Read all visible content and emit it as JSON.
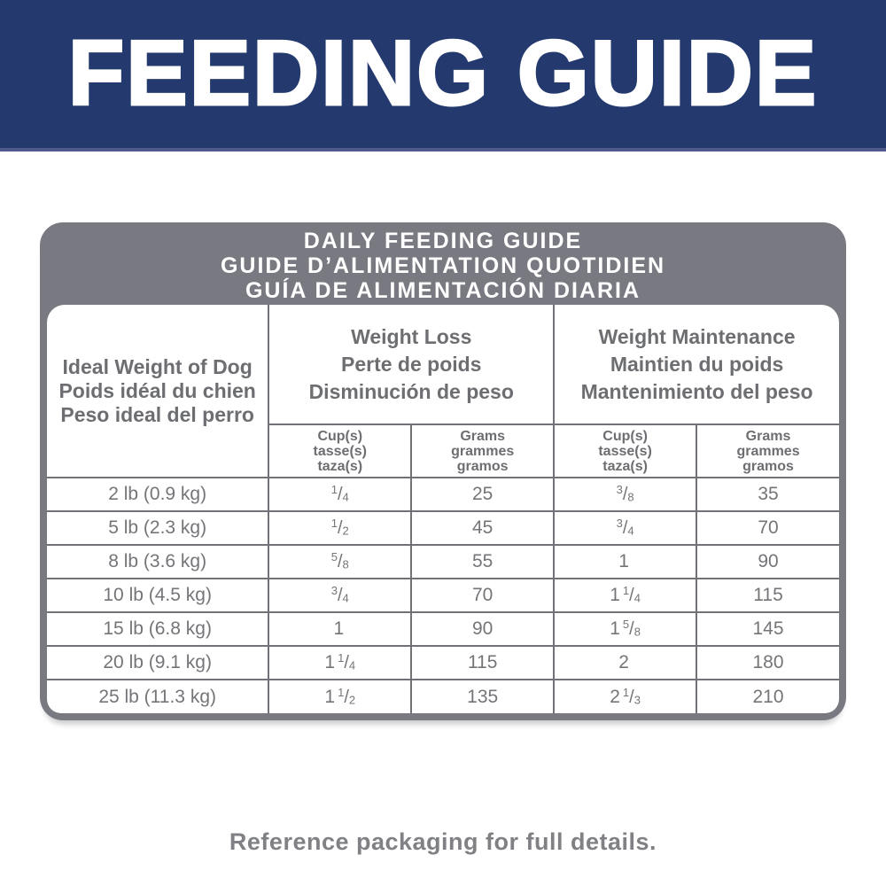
{
  "banner": {
    "title": "FEEDING GUIDE",
    "bg_color": "#243a6e",
    "underline_color": "#4d5a8b",
    "text_color": "#ffffff"
  },
  "table": {
    "frame_color": "#797a81",
    "grid_color": "#717278",
    "text_color": "#6d6e71",
    "header": {
      "title_lines": [
        "DAILY FEEDING GUIDE",
        "GUIDE D’ALIMENTATION QUOTIDIEN",
        "GUÍA DE ALIMENTACIÓN DIARIA"
      ]
    },
    "columns": {
      "weight": [
        "Ideal Weight of Dog",
        "Poids idéal du chien",
        "Peso ideal del perro"
      ],
      "weight_loss": [
        "Weight Loss",
        "Perte de poids",
        "Disminución de peso"
      ],
      "weight_maintenance": [
        "Weight Maintenance",
        "Maintien du poids",
        "Mantenimiento del peso"
      ],
      "cups": [
        "Cup(s)",
        "tasse(s)",
        "taza(s)"
      ],
      "grams": [
        "Grams",
        "grammes",
        "gramos"
      ]
    },
    "rows": [
      {
        "weight": "2 lb (0.9 kg)",
        "loss_cups": "1/4",
        "loss_grams": "25",
        "maint_cups": "3/8",
        "maint_grams": "35"
      },
      {
        "weight": "5 lb (2.3 kg)",
        "loss_cups": "1/2",
        "loss_grams": "45",
        "maint_cups": "3/4",
        "maint_grams": "70"
      },
      {
        "weight": "8 lb (3.6 kg)",
        "loss_cups": "5/8",
        "loss_grams": "55",
        "maint_cups": "1",
        "maint_grams": "90"
      },
      {
        "weight": "10 lb (4.5 kg)",
        "loss_cups": "3/4",
        "loss_grams": "70",
        "maint_cups": "1 1/4",
        "maint_grams": "115"
      },
      {
        "weight": "15 lb (6.8 kg)",
        "loss_cups": "1",
        "loss_grams": "90",
        "maint_cups": "1 5/8",
        "maint_grams": "145"
      },
      {
        "weight": "20 lb (9.1 kg)",
        "loss_cups": "1 1/4",
        "loss_grams": "115",
        "maint_cups": "2",
        "maint_grams": "180"
      },
      {
        "weight": "25 lb (11.3 kg)",
        "loss_cups": "1 1/2",
        "loss_grams": "135",
        "maint_cups": "2 1/3",
        "maint_grams": "210"
      }
    ]
  },
  "footer": {
    "note": "Reference packaging for full details."
  }
}
